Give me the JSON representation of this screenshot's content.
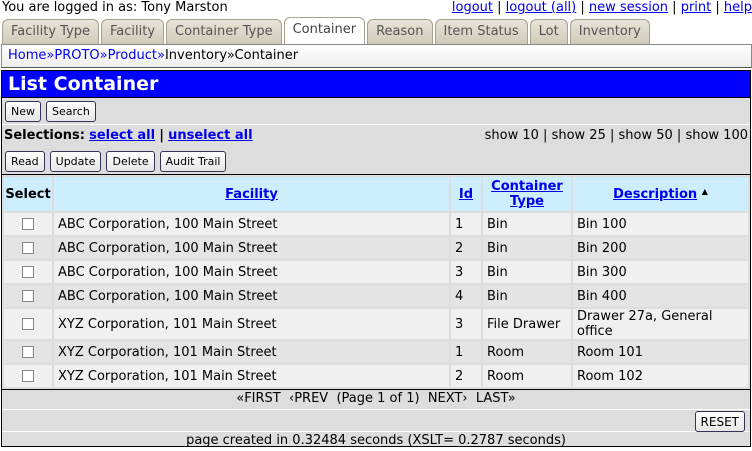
{
  "header": {
    "logged_in": "You are logged in as: Tony Marston",
    "links": [
      "logout",
      "logout (all)",
      "new session",
      "print",
      "help"
    ]
  },
  "tabs": [
    {
      "label": "Facility Type"
    },
    {
      "label": "Facility"
    },
    {
      "label": "Container Type"
    },
    {
      "label": "Container",
      "active": true
    },
    {
      "label": "Reason"
    },
    {
      "label": "Item Status"
    },
    {
      "label": "Lot"
    },
    {
      "label": "Inventory"
    }
  ],
  "breadcrumb": {
    "links": [
      "Home",
      "PROTO",
      "Product"
    ],
    "current": [
      "Inventory",
      "Container"
    ],
    "sep": "»"
  },
  "title": "List Container",
  "toolbar": {
    "new": "New",
    "search": "Search"
  },
  "selections": {
    "label": "Selections:",
    "select_all": "select all",
    "unselect_all": "unselect all",
    "show": [
      "show 10",
      "show 25",
      "show 50",
      "show 100"
    ]
  },
  "actions": {
    "read": "Read",
    "update": "Update",
    "delete": "Delete",
    "audit": "Audit Trail"
  },
  "table": {
    "headers": {
      "select": "Select",
      "facility": "Facility",
      "id": "Id",
      "type1": "Container",
      "type2": "Type",
      "description": "Description",
      "sort_icon": "▲"
    },
    "rows": [
      {
        "facility": "ABC Corporation, 100 Main Street",
        "id": "1",
        "type": "Bin",
        "description": "Bin 100"
      },
      {
        "facility": "ABC Corporation, 100 Main Street",
        "id": "2",
        "type": "Bin",
        "description": "Bin 200"
      },
      {
        "facility": "ABC Corporation, 100 Main Street",
        "id": "3",
        "type": "Bin",
        "description": "Bin 300"
      },
      {
        "facility": "ABC Corporation, 100 Main Street",
        "id": "4",
        "type": "Bin",
        "description": "Bin 400"
      },
      {
        "facility": "XYZ Corporation, 101 Main Street",
        "id": "3",
        "type": "File Drawer",
        "description": "Drawer 27a, General office"
      },
      {
        "facility": "XYZ Corporation, 101 Main Street",
        "id": "1",
        "type": "Room",
        "description": "Room 101"
      },
      {
        "facility": "XYZ Corporation, 101 Main Street",
        "id": "2",
        "type": "Room",
        "description": "Room 102"
      }
    ]
  },
  "pagination": {
    "first": "«FIRST",
    "prev": "‹PREV",
    "page": "(Page 1 of 1)",
    "next": "NEXT›",
    "last": "LAST»"
  },
  "reset": "RESET",
  "footer": "page created in 0.32484 seconds (XSLT= 0.2787 seconds)"
}
